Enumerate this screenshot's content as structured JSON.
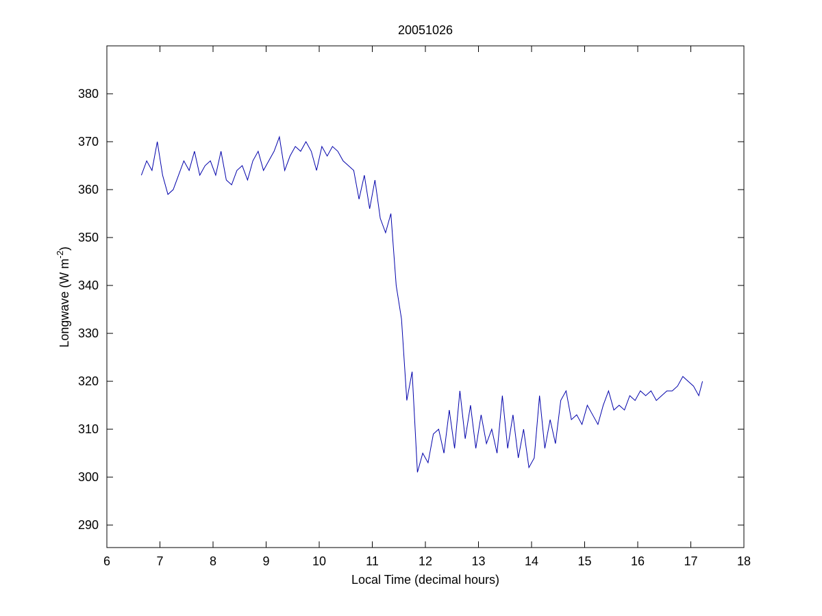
{
  "chart_data": {
    "type": "line",
    "title": "20051026",
    "xlabel": "Local Time (decimal hours)",
    "ylabel": {
      "text": "Longwave (W m",
      "superscript": "-2",
      "suffix": ")"
    },
    "x": [
      6.65,
      6.75,
      6.85,
      6.95,
      7.05,
      7.15,
      7.25,
      7.35,
      7.45,
      7.55,
      7.65,
      7.75,
      7.85,
      7.95,
      8.05,
      8.15,
      8.25,
      8.35,
      8.45,
      8.55,
      8.65,
      8.75,
      8.85,
      8.95,
      9.05,
      9.15,
      9.25,
      9.35,
      9.45,
      9.55,
      9.65,
      9.75,
      9.85,
      9.95,
      10.05,
      10.15,
      10.25,
      10.35,
      10.45,
      10.55,
      10.65,
      10.75,
      10.85,
      10.95,
      11.05,
      11.15,
      11.25,
      11.35,
      11.45,
      11.55,
      11.65,
      11.75,
      11.85,
      11.95,
      12.05,
      12.15,
      12.25,
      12.35,
      12.45,
      12.55,
      12.65,
      12.75,
      12.85,
      12.95,
      13.05,
      13.15,
      13.25,
      13.35,
      13.45,
      13.55,
      13.65,
      13.75,
      13.85,
      13.95,
      14.05,
      14.15,
      14.25,
      14.35,
      14.45,
      14.55,
      14.65,
      14.75,
      14.85,
      14.95,
      15.05,
      15.15,
      15.25,
      15.35,
      15.45,
      15.55,
      15.65,
      15.75,
      15.85,
      15.95,
      16.05,
      16.15,
      16.25,
      16.35,
      16.45,
      16.55,
      16.65,
      16.75,
      16.85,
      16.95,
      17.05,
      17.15,
      17.22
    ],
    "series": [
      {
        "name": "Longwave",
        "color": "#0000aa",
        "values": [
          363,
          366,
          364,
          370,
          363,
          359,
          360,
          363,
          366,
          364,
          368,
          363,
          365,
          366,
          363,
          368,
          362,
          361,
          364,
          365,
          362,
          366,
          368,
          364,
          366,
          368,
          371,
          364,
          367,
          369,
          368,
          370,
          368,
          364,
          369,
          367,
          369,
          368,
          366,
          365,
          364,
          358,
          363,
          356,
          362,
          354,
          351,
          355,
          340,
          333,
          316,
          322,
          301,
          305,
          303,
          309,
          310,
          305,
          314,
          306,
          318,
          308,
          315,
          306,
          313,
          307,
          310,
          305,
          317,
          306,
          313,
          304,
          310,
          302,
          304,
          317,
          306,
          312,
          307,
          316,
          318,
          312,
          313,
          311,
          315,
          313,
          311,
          315,
          318,
          314,
          315,
          314,
          317,
          316,
          318,
          317,
          318,
          316,
          317,
          318,
          318,
          319,
          321,
          320,
          319,
          317,
          320
        ]
      }
    ],
    "xlim": [
      6,
      18
    ],
    "xticks": [
      6,
      7,
      8,
      9,
      10,
      11,
      12,
      13,
      14,
      15,
      16,
      17,
      18
    ],
    "ylim": [
      285.3,
      390
    ],
    "yticks": [
      290,
      300,
      310,
      320,
      330,
      340,
      350,
      360,
      370,
      380
    ],
    "grid": false
  }
}
